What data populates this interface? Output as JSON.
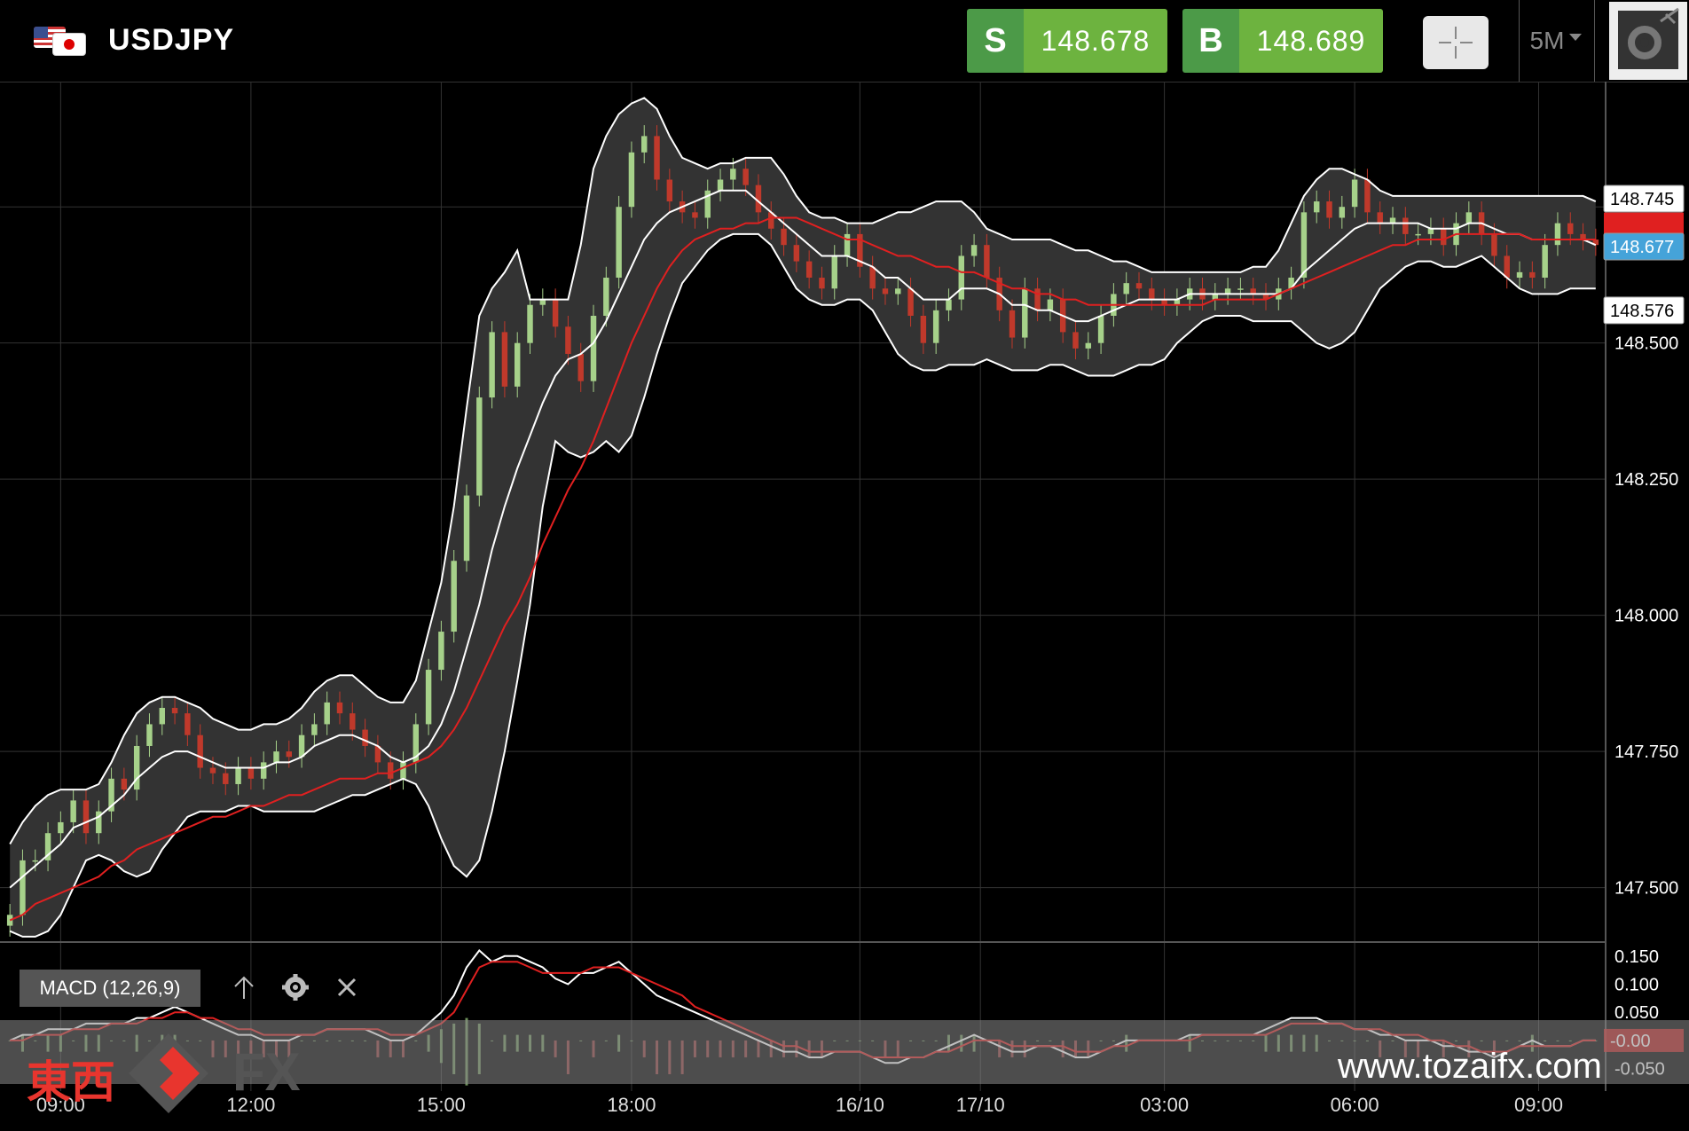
{
  "header": {
    "symbol": "USDJPY",
    "sell": {
      "label": "S",
      "price": "148.678"
    },
    "buy": {
      "label": "B",
      "price": "148.689"
    },
    "timeframe": "5M",
    "icons": [
      "us-flag-icon",
      "japan-flag-icon",
      "crosshair-icon",
      "chevron-down-icon",
      "gear-icon"
    ]
  },
  "indicator": {
    "label": "MACD (12,26,9)",
    "icons": [
      "arrow-up-icon",
      "gear-icon",
      "close-icon"
    ]
  },
  "watermark": {
    "url": "www.tozaifx.com",
    "logo_text": "東西",
    "logo_fx": "FX"
  },
  "colors": {
    "bg": "#000000",
    "grid": "#333333",
    "band_fill": "#333333",
    "band_line": "#ffffff",
    "ma_line": "#e02020",
    "up_candle": "#a6d18a",
    "down_candle": "#c0392b",
    "sell_green": "#6db33f",
    "price_tag_blue": "#45a3d9",
    "price_tag_red": "#e02020"
  },
  "chart_data": [
    {
      "type": "line",
      "subtype": "candlestick-with-bollinger-bands",
      "ylim": [
        147.4,
        148.98
      ],
      "y_ticks": [
        "148.500",
        "148.250",
        "148.000",
        "147.750",
        "147.500"
      ],
      "right_labels": {
        "upper": "148.745",
        "current": "148.677",
        "lower": "148.576"
      },
      "x_tick_labels": [
        "09:00",
        "12:00",
        "15:00",
        "18:00",
        "16/10",
        "17/10",
        "03:00",
        "06:00",
        "09:00"
      ],
      "x_tick_positions": [
        4,
        19,
        34,
        49,
        67,
        76.5,
        91,
        106,
        120.5
      ],
      "x_count": 126,
      "series": [
        {
          "role": "close",
          "values": [
            147.45,
            147.55,
            147.55,
            147.6,
            147.62,
            147.66,
            147.6,
            147.64,
            147.7,
            147.68,
            147.76,
            147.8,
            147.83,
            147.82,
            147.78,
            147.72,
            147.71,
            147.69,
            147.72,
            147.7,
            147.73,
            147.75,
            147.74,
            147.78,
            147.8,
            147.84,
            147.82,
            147.79,
            147.76,
            147.73,
            147.7,
            147.73,
            147.8,
            147.9,
            147.97,
            148.1,
            148.22,
            148.4,
            148.52,
            148.42,
            148.5,
            148.57,
            148.58,
            148.53,
            148.48,
            148.43,
            148.55,
            148.62,
            148.75,
            148.85,
            148.88,
            148.8,
            148.76,
            148.74,
            148.73,
            148.78,
            148.8,
            148.82,
            148.79,
            148.74,
            148.71,
            148.68,
            148.65,
            148.62,
            148.6,
            148.66,
            148.7,
            148.64,
            148.6,
            148.59,
            148.6,
            148.55,
            148.5,
            148.56,
            148.58,
            148.66,
            148.68,
            148.62,
            148.56,
            148.51,
            148.6,
            148.56,
            148.58,
            148.52,
            148.49,
            148.5,
            148.55,
            148.59,
            148.61,
            148.6,
            148.58,
            148.57,
            148.58,
            148.6,
            148.58,
            148.59,
            148.6,
            148.6,
            148.59,
            148.58,
            148.6,
            148.62,
            148.74,
            148.76,
            148.73,
            148.75,
            148.8,
            148.74,
            148.72,
            148.73,
            148.7,
            148.7,
            148.71,
            148.68,
            148.72,
            148.74,
            148.7,
            148.66,
            148.62,
            148.63,
            148.62,
            148.68,
            148.72,
            148.7,
            148.69,
            148.68
          ]
        },
        {
          "role": "bollinger-middle",
          "values": [
            147.5,
            147.52,
            147.54,
            147.56,
            147.58,
            147.61,
            147.62,
            147.63,
            147.65,
            147.67,
            147.7,
            147.72,
            147.74,
            147.75,
            147.75,
            147.74,
            147.73,
            147.72,
            147.72,
            147.72,
            147.72,
            147.73,
            147.73,
            147.74,
            147.76,
            147.77,
            147.78,
            147.78,
            147.77,
            147.76,
            147.74,
            147.73,
            147.74,
            147.76,
            147.8,
            147.86,
            147.94,
            148.02,
            148.12,
            148.2,
            148.27,
            148.33,
            148.39,
            148.44,
            148.47,
            148.48,
            148.5,
            148.54,
            148.59,
            148.64,
            148.69,
            148.72,
            148.74,
            148.75,
            148.76,
            148.77,
            148.78,
            148.78,
            148.78,
            148.76,
            148.74,
            148.72,
            148.7,
            148.68,
            148.66,
            148.66,
            148.66,
            148.65,
            148.64,
            148.62,
            148.62,
            148.6,
            148.58,
            148.58,
            148.58,
            148.6,
            148.6,
            148.6,
            148.59,
            148.57,
            148.57,
            148.56,
            148.56,
            148.55,
            148.54,
            148.54,
            148.55,
            148.56,
            148.57,
            148.58,
            148.58,
            148.58,
            148.58,
            148.59,
            148.59,
            148.59,
            148.59,
            148.59,
            148.59,
            148.59,
            148.59,
            148.6,
            148.63,
            148.65,
            148.67,
            148.69,
            148.71,
            148.72,
            148.72,
            148.72,
            148.72,
            148.72,
            148.71,
            148.71,
            148.71,
            148.72,
            148.72,
            148.71,
            148.7,
            148.7,
            148.69,
            148.69,
            148.69,
            148.69,
            148.69,
            148.68
          ]
        },
        {
          "role": "bollinger-upper",
          "values": [
            147.58,
            147.62,
            147.65,
            147.67,
            147.68,
            147.68,
            147.68,
            147.69,
            147.73,
            147.78,
            147.82,
            147.84,
            147.85,
            147.85,
            147.84,
            147.83,
            147.81,
            147.8,
            147.79,
            147.79,
            147.8,
            147.8,
            147.81,
            147.83,
            147.86,
            147.88,
            147.89,
            147.89,
            147.87,
            147.85,
            147.84,
            147.84,
            147.88,
            147.97,
            148.06,
            148.2,
            148.38,
            148.55,
            148.6,
            148.63,
            148.67,
            148.58,
            148.58,
            148.58,
            148.58,
            148.68,
            148.82,
            148.88,
            148.92,
            148.94,
            148.95,
            148.93,
            148.88,
            148.84,
            148.83,
            148.82,
            148.83,
            148.83,
            148.84,
            148.84,
            148.84,
            148.81,
            148.77,
            148.74,
            148.73,
            148.73,
            148.72,
            148.72,
            148.72,
            148.73,
            148.74,
            148.74,
            148.75,
            148.76,
            148.76,
            148.76,
            148.74,
            148.71,
            148.7,
            148.69,
            148.69,
            148.69,
            148.69,
            148.68,
            148.67,
            148.67,
            148.66,
            148.65,
            148.65,
            148.64,
            148.63,
            148.63,
            148.63,
            148.63,
            148.63,
            148.63,
            148.63,
            148.63,
            148.64,
            148.64,
            148.67,
            148.72,
            148.77,
            148.8,
            148.82,
            148.82,
            148.81,
            148.8,
            148.78,
            148.77,
            148.77,
            148.77,
            148.77,
            148.77,
            148.77,
            148.77,
            148.77,
            148.77,
            148.77,
            148.77,
            148.77,
            148.77,
            148.77,
            148.77,
            148.77,
            148.76
          ]
        },
        {
          "role": "bollinger-lower",
          "values": [
            147.42,
            147.41,
            147.41,
            147.42,
            147.45,
            147.5,
            147.55,
            147.56,
            147.55,
            147.53,
            147.52,
            147.53,
            147.57,
            147.6,
            147.63,
            147.64,
            147.64,
            147.64,
            147.65,
            147.65,
            147.64,
            147.64,
            147.64,
            147.64,
            147.64,
            147.65,
            147.66,
            147.67,
            147.67,
            147.68,
            147.69,
            147.7,
            147.69,
            147.65,
            147.59,
            147.54,
            147.52,
            147.55,
            147.64,
            147.75,
            147.88,
            148.02,
            148.2,
            148.32,
            148.3,
            148.29,
            148.3,
            148.32,
            148.3,
            148.33,
            148.4,
            148.48,
            148.55,
            148.61,
            148.64,
            148.67,
            148.69,
            148.7,
            148.7,
            148.7,
            148.68,
            148.64,
            148.6,
            148.58,
            148.57,
            148.57,
            148.58,
            148.58,
            148.56,
            148.52,
            148.48,
            148.46,
            148.45,
            148.45,
            148.46,
            148.46,
            148.46,
            148.47,
            148.46,
            148.45,
            148.45,
            148.45,
            148.46,
            148.46,
            148.45,
            148.44,
            148.44,
            148.44,
            148.45,
            148.46,
            148.46,
            148.47,
            148.5,
            148.52,
            148.54,
            148.55,
            148.55,
            148.55,
            148.54,
            148.54,
            148.54,
            148.54,
            148.52,
            148.5,
            148.49,
            148.5,
            148.52,
            148.56,
            148.6,
            148.62,
            148.64,
            148.65,
            148.65,
            148.64,
            148.64,
            148.65,
            148.66,
            148.64,
            148.62,
            148.6,
            148.59,
            148.59,
            148.59,
            148.6,
            148.6,
            148.6
          ]
        },
        {
          "role": "moving-average",
          "values": [
            147.44,
            147.45,
            147.47,
            147.48,
            147.49,
            147.5,
            147.51,
            147.52,
            147.54,
            147.55,
            147.57,
            147.58,
            147.59,
            147.6,
            147.61,
            147.62,
            147.63,
            147.63,
            147.64,
            147.65,
            147.65,
            147.66,
            147.67,
            147.67,
            147.68,
            147.69,
            147.7,
            147.7,
            147.7,
            147.71,
            147.71,
            147.72,
            147.73,
            147.74,
            147.76,
            147.79,
            147.83,
            147.88,
            147.93,
            147.98,
            148.02,
            148.07,
            148.13,
            148.18,
            148.23,
            148.27,
            148.32,
            148.38,
            148.44,
            148.5,
            148.55,
            148.6,
            148.64,
            148.67,
            148.69,
            148.7,
            148.71,
            148.71,
            148.72,
            148.72,
            148.73,
            148.73,
            148.73,
            148.72,
            148.71,
            148.7,
            148.69,
            148.69,
            148.68,
            148.67,
            148.66,
            148.66,
            148.65,
            148.64,
            148.64,
            148.63,
            148.63,
            148.62,
            148.61,
            148.6,
            148.6,
            148.59,
            148.59,
            148.58,
            148.58,
            148.57,
            148.57,
            148.57,
            148.57,
            148.57,
            148.57,
            148.57,
            148.57,
            148.57,
            148.57,
            148.58,
            148.58,
            148.58,
            148.58,
            148.58,
            148.59,
            148.6,
            148.61,
            148.62,
            148.63,
            148.64,
            148.65,
            148.66,
            148.67,
            148.68,
            148.68,
            148.69,
            148.69,
            148.69,
            148.7,
            148.7,
            148.7,
            148.7,
            148.7,
            148.7,
            148.69,
            148.69,
            148.69,
            148.69,
            148.69,
            148.69
          ]
        }
      ]
    },
    {
      "type": "line",
      "title": "MACD (12,26,9)",
      "ylim": [
        -0.09,
        0.175
      ],
      "y_ticks": [
        "0.150",
        "0.100",
        "0.050",
        "-0.050"
      ],
      "current_label": "-0.00",
      "series": [
        {
          "role": "macd",
          "color": "#ffffff",
          "values": [
            0.0,
            0.01,
            0.01,
            0.02,
            0.02,
            0.02,
            0.03,
            0.03,
            0.03,
            0.03,
            0.04,
            0.04,
            0.05,
            0.06,
            0.05,
            0.04,
            0.03,
            0.02,
            0.01,
            0.01,
            0.0,
            0.0,
            0.0,
            0.01,
            0.01,
            0.02,
            0.02,
            0.02,
            0.02,
            0.01,
            0.0,
            0.0,
            0.01,
            0.03,
            0.05,
            0.08,
            0.13,
            0.16,
            0.14,
            0.15,
            0.15,
            0.14,
            0.13,
            0.11,
            0.1,
            0.12,
            0.12,
            0.13,
            0.14,
            0.12,
            0.1,
            0.08,
            0.07,
            0.06,
            0.05,
            0.04,
            0.03,
            0.02,
            0.01,
            0.0,
            -0.01,
            -0.02,
            -0.02,
            -0.03,
            -0.03,
            -0.02,
            -0.02,
            -0.02,
            -0.03,
            -0.04,
            -0.04,
            -0.03,
            -0.03,
            -0.02,
            -0.01,
            0.0,
            0.01,
            0.0,
            -0.01,
            -0.02,
            -0.02,
            -0.01,
            -0.01,
            -0.02,
            -0.03,
            -0.03,
            -0.02,
            -0.01,
            0.0,
            0.0,
            0.0,
            0.0,
            0.0,
            0.01,
            0.01,
            0.01,
            0.01,
            0.01,
            0.01,
            0.02,
            0.03,
            0.04,
            0.04,
            0.04,
            0.03,
            0.03,
            0.02,
            0.02,
            0.01,
            0.01,
            0.0,
            0.0,
            0.0,
            -0.01,
            -0.01,
            -0.02,
            -0.02,
            -0.03,
            -0.02,
            -0.01,
            0.0,
            -0.01,
            -0.01,
            -0.01,
            0.0,
            0.0
          ]
        },
        {
          "role": "signal",
          "color": "#e02020",
          "values": [
            0.0,
            0.0,
            0.01,
            0.01,
            0.01,
            0.02,
            0.02,
            0.02,
            0.03,
            0.03,
            0.03,
            0.04,
            0.04,
            0.05,
            0.05,
            0.04,
            0.04,
            0.03,
            0.02,
            0.02,
            0.01,
            0.01,
            0.01,
            0.01,
            0.01,
            0.02,
            0.02,
            0.02,
            0.02,
            0.02,
            0.01,
            0.01,
            0.01,
            0.02,
            0.03,
            0.05,
            0.09,
            0.13,
            0.14,
            0.14,
            0.14,
            0.13,
            0.12,
            0.12,
            0.12,
            0.12,
            0.13,
            0.13,
            0.13,
            0.12,
            0.11,
            0.1,
            0.09,
            0.08,
            0.06,
            0.05,
            0.04,
            0.03,
            0.02,
            0.01,
            0.0,
            -0.01,
            -0.01,
            -0.02,
            -0.02,
            -0.02,
            -0.02,
            -0.02,
            -0.03,
            -0.03,
            -0.03,
            -0.03,
            -0.03,
            -0.02,
            -0.02,
            -0.01,
            0.0,
            0.0,
            0.0,
            -0.01,
            -0.01,
            -0.01,
            -0.01,
            -0.01,
            -0.02,
            -0.02,
            -0.02,
            -0.01,
            -0.01,
            0.0,
            0.0,
            0.0,
            0.0,
            0.0,
            0.01,
            0.01,
            0.01,
            0.01,
            0.01,
            0.01,
            0.02,
            0.03,
            0.03,
            0.03,
            0.03,
            0.03,
            0.02,
            0.02,
            0.02,
            0.01,
            0.01,
            0.01,
            0.0,
            0.0,
            -0.01,
            -0.01,
            -0.02,
            -0.02,
            -0.02,
            -0.01,
            -0.01,
            -0.01,
            -0.01,
            -0.01,
            0.0,
            0.0
          ]
        }
      ]
    }
  ]
}
